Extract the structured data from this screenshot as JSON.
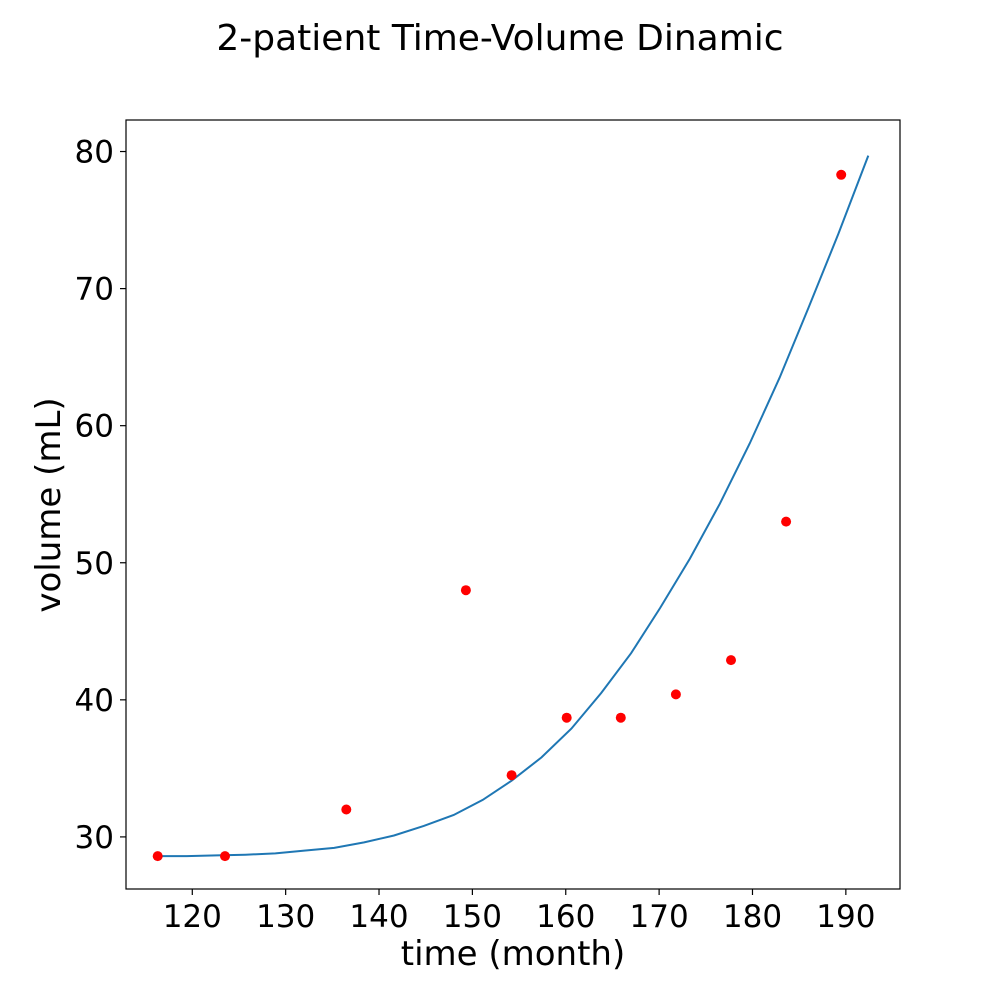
{
  "chart_data": {
    "type": "scatter",
    "title": "2-patient Time-Volume Dinamic",
    "xlabel": "time (month)",
    "ylabel": "volume (mL)",
    "xlim": [
      112.9,
      195.8
    ],
    "ylim": [
      26.2,
      82.3
    ],
    "x_ticks": [
      120,
      130,
      140,
      150,
      160,
      170,
      180,
      190
    ],
    "y_ticks": [
      30,
      40,
      50,
      60,
      70,
      80
    ],
    "grid": false,
    "colors": {
      "points": "#ff0000",
      "curve": "#1f77b4"
    },
    "series": [
      {
        "kind": "scatter",
        "x": [
          116.3,
          123.5,
          136.5,
          149.3,
          154.2,
          160.1,
          165.9,
          171.8,
          177.7,
          183.6,
          189.5
        ],
        "y": [
          28.6,
          28.6,
          32.0,
          48.0,
          34.5,
          38.7,
          38.7,
          40.4,
          42.9,
          53.0,
          78.3
        ]
      },
      {
        "kind": "line",
        "x": [
          116.3,
          119.4,
          122.6,
          125.7,
          128.9,
          132.0,
          135.2,
          138.4,
          141.6,
          144.8,
          148.0,
          151.1,
          154.2,
          157.4,
          160.6,
          163.8,
          167.0,
          170.1,
          173.3,
          176.5,
          179.7,
          182.9,
          186.0,
          189.2,
          192.4
        ],
        "y": [
          28.6,
          28.6,
          28.65,
          28.7,
          28.8,
          29.0,
          29.2,
          29.6,
          30.1,
          30.8,
          31.6,
          32.7,
          34.1,
          35.8,
          37.9,
          40.5,
          43.4,
          46.7,
          50.3,
          54.3,
          58.7,
          63.5,
          68.6,
          74.0,
          79.7
        ]
      }
    ]
  }
}
